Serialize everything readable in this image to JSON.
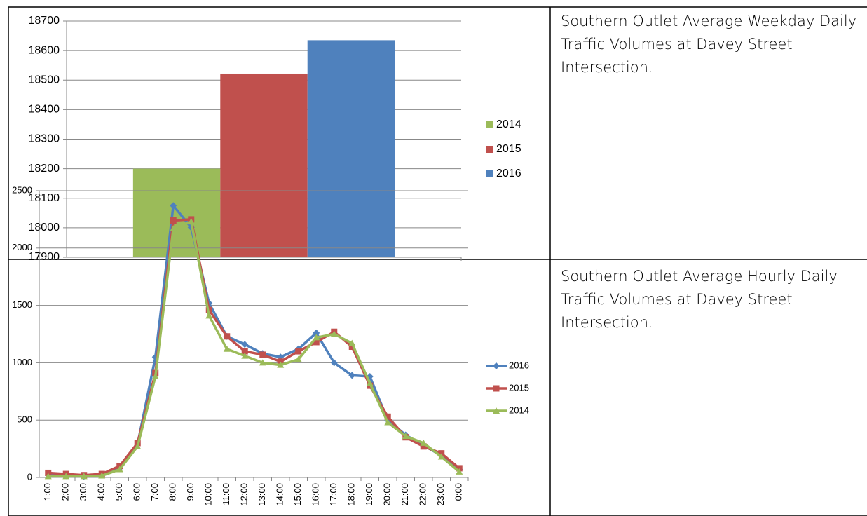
{
  "chart_data": [
    {
      "type": "bar",
      "series": [
        {
          "name": "2014",
          "color": "#9bbb59",
          "values": [
            18200
          ]
        },
        {
          "name": "2015",
          "color": "#c0504d",
          "values": [
            18522
          ]
        },
        {
          "name": "2016",
          "color": "#4f81bd",
          "values": [
            18635
          ]
        }
      ],
      "ylim": [
        17900,
        18700
      ],
      "yticks": [
        17900,
        18000,
        18100,
        18200,
        18300,
        18400,
        18500,
        18600,
        18700
      ],
      "grid": true,
      "legend": "right"
    },
    {
      "type": "line",
      "categories": [
        "1:00",
        "2:00",
        "3:00",
        "4:00",
        "5:00",
        "6:00",
        "7:00",
        "8:00",
        "9:00",
        "10:00",
        "11:00",
        "12:00",
        "13:00",
        "14:00",
        "15:00",
        "16:00",
        "17:00",
        "18:00",
        "19:00",
        "20:00",
        "21:00",
        "22:00",
        "23:00",
        "0:00"
      ],
      "series": [
        {
          "name": "2016",
          "color": "#4f81bd",
          "marker": "diamond",
          "values": [
            20,
            15,
            10,
            20,
            80,
            290,
            1050,
            2370,
            2180,
            1520,
            1230,
            1160,
            1080,
            1050,
            1120,
            1260,
            1000,
            890,
            880,
            500,
            370,
            280,
            190,
            70
          ]
        },
        {
          "name": "2015",
          "color": "#c0504d",
          "marker": "square",
          "values": [
            40,
            30,
            20,
            30,
            100,
            300,
            910,
            2240,
            2250,
            1460,
            1230,
            1100,
            1070,
            1010,
            1100,
            1180,
            1270,
            1140,
            800,
            530,
            350,
            270,
            210,
            80
          ]
        },
        {
          "name": "2014",
          "color": "#9bbb59",
          "marker": "triangle",
          "values": [
            10,
            10,
            10,
            15,
            70,
            270,
            880,
            2170,
            2230,
            1410,
            1120,
            1060,
            1000,
            980,
            1030,
            1220,
            1250,
            1170,
            820,
            480,
            360,
            300,
            180,
            50
          ]
        }
      ],
      "ylim": [
        0,
        2500
      ],
      "yticks": [
        0,
        500,
        1000,
        1500,
        2000,
        2500
      ],
      "grid": true,
      "legend": "right"
    }
  ],
  "captions": [
    "Southern Outlet Average Weekday Daily Traffic Volumes at Davey Street Intersection.",
    "Southern Outlet Average Hourly Daily Traffic Volumes at Davey Street Intersection."
  ]
}
